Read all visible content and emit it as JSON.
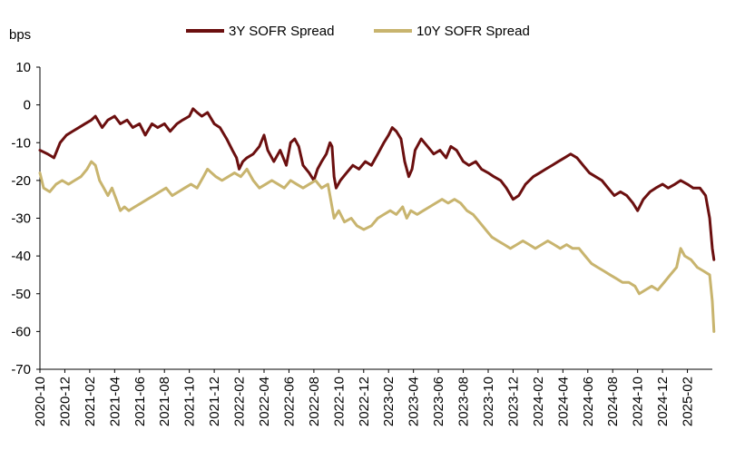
{
  "chart_data": {
    "type": "line",
    "ylabel": "bps",
    "ylim": [
      -70,
      10
    ],
    "yticks": [
      10,
      0,
      -10,
      -20,
      -30,
      -40,
      -50,
      -60,
      -70
    ],
    "x_start": "2020-10",
    "x_end": "2025-04",
    "xticks": [
      "2020-10",
      "2020-12",
      "2021-02",
      "2021-04",
      "2021-06",
      "2021-08",
      "2021-10",
      "2021-12",
      "2022-02",
      "2022-04",
      "2022-06",
      "2022-08",
      "2022-10",
      "2022-12",
      "2023-02",
      "2023-04",
      "2023-06",
      "2023-08",
      "2023-10",
      "2023-12",
      "2024-02",
      "2024-04",
      "2024-06",
      "2024-08",
      "2024-10",
      "2024-12",
      "2025-02"
    ],
    "legend_position": "top",
    "series": [
      {
        "name": "3Y SOFR Spread",
        "color": "#6B0F0F",
        "points": [
          [
            "2020-10-01",
            -12
          ],
          [
            "2020-10-20",
            -13
          ],
          [
            "2020-11-05",
            -14
          ],
          [
            "2020-11-20",
            -10
          ],
          [
            "2020-12-05",
            -8
          ],
          [
            "2020-12-20",
            -7
          ],
          [
            "2021-01-05",
            -6
          ],
          [
            "2021-01-20",
            -5
          ],
          [
            "2021-02-05",
            -4
          ],
          [
            "2021-02-15",
            -3
          ],
          [
            "2021-03-01",
            -6
          ],
          [
            "2021-03-15",
            -4
          ],
          [
            "2021-04-01",
            -3
          ],
          [
            "2021-04-15",
            -5
          ],
          [
            "2021-05-01",
            -4
          ],
          [
            "2021-05-15",
            -6
          ],
          [
            "2021-06-01",
            -5
          ],
          [
            "2021-06-15",
            -8
          ],
          [
            "2021-07-01",
            -5
          ],
          [
            "2021-07-15",
            -6
          ],
          [
            "2021-08-01",
            -5
          ],
          [
            "2021-08-15",
            -7
          ],
          [
            "2021-09-01",
            -5
          ],
          [
            "2021-09-15",
            -4
          ],
          [
            "2021-10-01",
            -3
          ],
          [
            "2021-10-10",
            -1
          ],
          [
            "2021-10-20",
            -2
          ],
          [
            "2021-11-01",
            -3
          ],
          [
            "2021-11-15",
            -2
          ],
          [
            "2021-12-01",
            -5
          ],
          [
            "2021-12-15",
            -6
          ],
          [
            "2022-01-01",
            -9
          ],
          [
            "2022-01-15",
            -12
          ],
          [
            "2022-01-25",
            -14
          ],
          [
            "2022-02-01",
            -17
          ],
          [
            "2022-02-10",
            -15
          ],
          [
            "2022-02-20",
            -14
          ],
          [
            "2022-03-05",
            -13
          ],
          [
            "2022-03-20",
            -11
          ],
          [
            "2022-04-01",
            -8
          ],
          [
            "2022-04-10",
            -12
          ],
          [
            "2022-04-25",
            -15
          ],
          [
            "2022-05-10",
            -12
          ],
          [
            "2022-05-25",
            -16
          ],
          [
            "2022-06-05",
            -10
          ],
          [
            "2022-06-15",
            -9
          ],
          [
            "2022-06-25",
            -11
          ],
          [
            "2022-07-05",
            -16
          ],
          [
            "2022-07-20",
            -18
          ],
          [
            "2022-08-01",
            -20
          ],
          [
            "2022-08-10",
            -17
          ],
          [
            "2022-08-20",
            -15
          ],
          [
            "2022-09-01",
            -13
          ],
          [
            "2022-09-10",
            -10
          ],
          [
            "2022-09-15",
            -11
          ],
          [
            "2022-09-20",
            -19
          ],
          [
            "2022-09-25",
            -22
          ],
          [
            "2022-10-05",
            -20
          ],
          [
            "2022-10-20",
            -18
          ],
          [
            "2022-11-05",
            -16
          ],
          [
            "2022-11-20",
            -17
          ],
          [
            "2022-12-05",
            -15
          ],
          [
            "2022-12-20",
            -16
          ],
          [
            "2023-01-05",
            -13
          ],
          [
            "2023-01-20",
            -10
          ],
          [
            "2023-02-01",
            -8
          ],
          [
            "2023-02-10",
            -6
          ],
          [
            "2023-02-20",
            -7
          ],
          [
            "2023-03-01",
            -9
          ],
          [
            "2023-03-10",
            -15
          ],
          [
            "2023-03-20",
            -19
          ],
          [
            "2023-03-28",
            -17
          ],
          [
            "2023-04-05",
            -12
          ],
          [
            "2023-04-20",
            -9
          ],
          [
            "2023-05-05",
            -11
          ],
          [
            "2023-05-20",
            -13
          ],
          [
            "2023-06-05",
            -12
          ],
          [
            "2023-06-20",
            -14
          ],
          [
            "2023-07-01",
            -11
          ],
          [
            "2023-07-15",
            -12
          ],
          [
            "2023-08-01",
            -15
          ],
          [
            "2023-08-15",
            -16
          ],
          [
            "2023-09-01",
            -15
          ],
          [
            "2023-09-15",
            -17
          ],
          [
            "2023-10-01",
            -18
          ],
          [
            "2023-10-15",
            -19
          ],
          [
            "2023-11-01",
            -20
          ],
          [
            "2023-11-15",
            -22
          ],
          [
            "2023-12-01",
            -25
          ],
          [
            "2023-12-15",
            -24
          ],
          [
            "2024-01-01",
            -21
          ],
          [
            "2024-01-20",
            -19
          ],
          [
            "2024-02-05",
            -18
          ],
          [
            "2024-02-20",
            -17
          ],
          [
            "2024-03-05",
            -16
          ],
          [
            "2024-03-20",
            -15
          ],
          [
            "2024-04-05",
            -14
          ],
          [
            "2024-04-20",
            -13
          ],
          [
            "2024-05-05",
            -14
          ],
          [
            "2024-05-20",
            -16
          ],
          [
            "2024-06-05",
            -18
          ],
          [
            "2024-06-20",
            -19
          ],
          [
            "2024-07-05",
            -20
          ],
          [
            "2024-07-20",
            -22
          ],
          [
            "2024-08-05",
            -24
          ],
          [
            "2024-08-20",
            -23
          ],
          [
            "2024-09-05",
            -24
          ],
          [
            "2024-09-20",
            -26
          ],
          [
            "2024-10-01",
            -28
          ],
          [
            "2024-10-15",
            -25
          ],
          [
            "2024-11-01",
            -23
          ],
          [
            "2024-11-15",
            -22
          ],
          [
            "2024-12-01",
            -21
          ],
          [
            "2024-12-15",
            -22
          ],
          [
            "2025-01-01",
            -21
          ],
          [
            "2025-01-15",
            -20
          ],
          [
            "2025-02-01",
            -21
          ],
          [
            "2025-02-15",
            -22
          ],
          [
            "2025-03-01",
            -22
          ],
          [
            "2025-03-15",
            -24
          ],
          [
            "2025-03-25",
            -30
          ],
          [
            "2025-04-01",
            -38
          ],
          [
            "2025-04-05",
            -41
          ]
        ]
      },
      {
        "name": "10Y SOFR Spread",
        "color": "#C8B46E",
        "points": [
          [
            "2020-10-01",
            -18
          ],
          [
            "2020-10-10",
            -22
          ],
          [
            "2020-10-25",
            -23
          ],
          [
            "2020-11-10",
            -21
          ],
          [
            "2020-11-25",
            -20
          ],
          [
            "2020-12-10",
            -21
          ],
          [
            "2020-12-25",
            -20
          ],
          [
            "2021-01-10",
            -19
          ],
          [
            "2021-01-25",
            -17
          ],
          [
            "2021-02-05",
            -15
          ],
          [
            "2021-02-15",
            -16
          ],
          [
            "2021-02-25",
            -20
          ],
          [
            "2021-03-05",
            -22
          ],
          [
            "2021-03-15",
            -24
          ],
          [
            "2021-03-25",
            -22
          ],
          [
            "2021-04-05",
            -25
          ],
          [
            "2021-04-15",
            -28
          ],
          [
            "2021-04-25",
            -27
          ],
          [
            "2021-05-05",
            -28
          ],
          [
            "2021-05-20",
            -27
          ],
          [
            "2021-06-05",
            -26
          ],
          [
            "2021-06-20",
            -25
          ],
          [
            "2021-07-05",
            -24
          ],
          [
            "2021-07-20",
            -23
          ],
          [
            "2021-08-05",
            -22
          ],
          [
            "2021-08-20",
            -24
          ],
          [
            "2021-09-05",
            -23
          ],
          [
            "2021-09-20",
            -22
          ],
          [
            "2021-10-05",
            -21
          ],
          [
            "2021-10-20",
            -22
          ],
          [
            "2021-11-05",
            -19
          ],
          [
            "2021-11-15",
            -17
          ],
          [
            "2021-11-25",
            -18
          ],
          [
            "2021-12-05",
            -19
          ],
          [
            "2021-12-20",
            -20
          ],
          [
            "2022-01-05",
            -19
          ],
          [
            "2022-01-20",
            -18
          ],
          [
            "2022-02-05",
            -19
          ],
          [
            "2022-02-20",
            -17
          ],
          [
            "2022-03-05",
            -20
          ],
          [
            "2022-03-20",
            -22
          ],
          [
            "2022-04-05",
            -21
          ],
          [
            "2022-04-20",
            -20
          ],
          [
            "2022-05-05",
            -21
          ],
          [
            "2022-05-20",
            -22
          ],
          [
            "2022-06-05",
            -20
          ],
          [
            "2022-06-20",
            -21
          ],
          [
            "2022-07-05",
            -22
          ],
          [
            "2022-07-20",
            -21
          ],
          [
            "2022-08-05",
            -20
          ],
          [
            "2022-08-20",
            -22
          ],
          [
            "2022-09-05",
            -21
          ],
          [
            "2022-09-10",
            -24
          ],
          [
            "2022-09-20",
            -30
          ],
          [
            "2022-10-01",
            -28
          ],
          [
            "2022-10-15",
            -31
          ],
          [
            "2022-11-01",
            -30
          ],
          [
            "2022-11-15",
            -32
          ],
          [
            "2022-12-01",
            -33
          ],
          [
            "2022-12-20",
            -32
          ],
          [
            "2023-01-05",
            -30
          ],
          [
            "2023-01-20",
            -29
          ],
          [
            "2023-02-05",
            -28
          ],
          [
            "2023-02-20",
            -29
          ],
          [
            "2023-03-05",
            -27
          ],
          [
            "2023-03-15",
            -30
          ],
          [
            "2023-03-25",
            -28
          ],
          [
            "2023-04-10",
            -29
          ],
          [
            "2023-04-25",
            -28
          ],
          [
            "2023-05-10",
            -27
          ],
          [
            "2023-05-25",
            -26
          ],
          [
            "2023-06-10",
            -25
          ],
          [
            "2023-06-25",
            -26
          ],
          [
            "2023-07-10",
            -25
          ],
          [
            "2023-07-25",
            -26
          ],
          [
            "2023-08-10",
            -28
          ],
          [
            "2023-08-25",
            -29
          ],
          [
            "2023-09-10",
            -31
          ],
          [
            "2023-09-25",
            -33
          ],
          [
            "2023-10-10",
            -35
          ],
          [
            "2023-10-25",
            -36
          ],
          [
            "2023-11-10",
            -37
          ],
          [
            "2023-11-25",
            -38
          ],
          [
            "2023-12-10",
            -37
          ],
          [
            "2023-12-25",
            -36
          ],
          [
            "2024-01-10",
            -37
          ],
          [
            "2024-01-25",
            -38
          ],
          [
            "2024-02-10",
            -37
          ],
          [
            "2024-02-25",
            -36
          ],
          [
            "2024-03-10",
            -37
          ],
          [
            "2024-03-25",
            -38
          ],
          [
            "2024-04-10",
            -37
          ],
          [
            "2024-04-25",
            -38
          ],
          [
            "2024-05-10",
            -38
          ],
          [
            "2024-05-25",
            -40
          ],
          [
            "2024-06-10",
            -42
          ],
          [
            "2024-06-25",
            -43
          ],
          [
            "2024-07-10",
            -44
          ],
          [
            "2024-07-25",
            -45
          ],
          [
            "2024-08-10",
            -46
          ],
          [
            "2024-08-25",
            -47
          ],
          [
            "2024-09-10",
            -47
          ],
          [
            "2024-09-25",
            -48
          ],
          [
            "2024-10-05",
            -50
          ],
          [
            "2024-10-20",
            -49
          ],
          [
            "2024-11-05",
            -48
          ],
          [
            "2024-11-20",
            -49
          ],
          [
            "2024-12-05",
            -47
          ],
          [
            "2024-12-20",
            -45
          ],
          [
            "2025-01-05",
            -43
          ],
          [
            "2025-01-15",
            -38
          ],
          [
            "2025-01-25",
            -40
          ],
          [
            "2025-02-10",
            -41
          ],
          [
            "2025-02-25",
            -43
          ],
          [
            "2025-03-10",
            -44
          ],
          [
            "2025-03-25",
            -45
          ],
          [
            "2025-04-01",
            -52
          ],
          [
            "2025-04-05",
            -60
          ]
        ]
      }
    ]
  }
}
